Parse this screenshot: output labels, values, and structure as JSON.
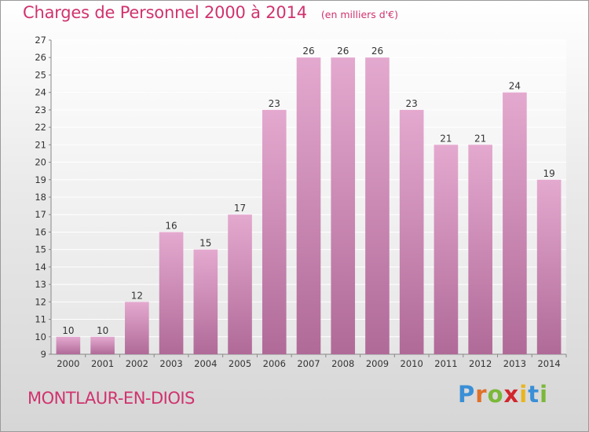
{
  "title": "Charges de Personnel 2000 à 2014",
  "subtitle": "(en milliers d'€)",
  "location": "MONTLAUR-EN-DIOIS",
  "logo": {
    "text": "Proxiti",
    "letters": [
      {
        "ch": "P",
        "color": "#3a8fd6"
      },
      {
        "ch": "r",
        "color": "#e0702a"
      },
      {
        "ch": "o",
        "color": "#7bb83a"
      },
      {
        "ch": "x",
        "color": "#d2262d"
      },
      {
        "ch": "i",
        "color": "#e8b51f"
      },
      {
        "ch": "t",
        "color": "#3a8fd6"
      },
      {
        "ch": "i",
        "color": "#7bb83a"
      }
    ]
  },
  "chart_data": {
    "type": "bar",
    "title": "Charges de Personnel 2000 à 2014",
    "subtitle": "(en milliers d'€)",
    "categories": [
      "2000",
      "2001",
      "2002",
      "2003",
      "2004",
      "2005",
      "2006",
      "2007",
      "2008",
      "2009",
      "2010",
      "2011",
      "2012",
      "2013",
      "2014"
    ],
    "values": [
      10,
      10,
      12,
      16,
      15,
      17,
      23,
      26,
      26,
      26,
      23,
      21,
      21,
      24,
      19
    ],
    "ylim": [
      9,
      27
    ],
    "yticks": [
      9,
      10,
      11,
      12,
      13,
      14,
      15,
      16,
      17,
      18,
      19,
      20,
      21,
      22,
      23,
      24,
      25,
      26,
      27
    ],
    "grid": true,
    "legend": "none",
    "colors": {
      "bar_top": "#e4a9cf",
      "bar_bottom": "#b06a98",
      "title": "#d0336e"
    }
  }
}
